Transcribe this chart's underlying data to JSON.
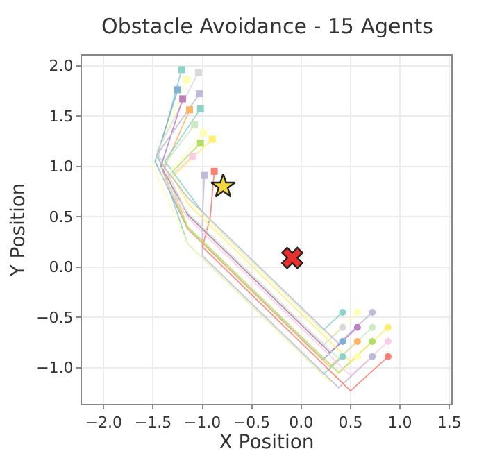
{
  "chart_data": {
    "type": "line",
    "title": "Obstacle Avoidance - 15 Agents",
    "xlabel": "X Position",
    "ylabel": "Y Position",
    "xlim": [
      -2.22,
      1.52
    ],
    "ylim": [
      -1.36,
      2.1
    ],
    "xticks": [
      {
        "value": -2.0,
        "label": "−2.0"
      },
      {
        "value": -1.5,
        "label": "−1.5"
      },
      {
        "value": -1.0,
        "label": "−1.0"
      },
      {
        "value": -0.5,
        "label": "−0.5"
      },
      {
        "value": 0.0,
        "label": "0.0"
      },
      {
        "value": 0.5,
        "label": "0.5"
      },
      {
        "value": 1.0,
        "label": "1.0"
      },
      {
        "value": 1.5,
        "label": "1.5"
      }
    ],
    "yticks": [
      {
        "value": -1.0,
        "label": "−1.0"
      },
      {
        "value": -0.5,
        "label": "−0.5"
      },
      {
        "value": 0.0,
        "label": "0.0"
      },
      {
        "value": 0.5,
        "label": "0.5"
      },
      {
        "value": 1.0,
        "label": "1.0"
      },
      {
        "value": 1.5,
        "label": "1.5"
      },
      {
        "value": 2.0,
        "label": "2.0"
      }
    ],
    "grid": true,
    "marker": "none",
    "line_style": "solid",
    "series": [
      {
        "color": "#8dd3c7",
        "x": [
          0.42,
          0.22,
          -1.15,
          -1.45,
          -1.21
        ],
        "values": [
          -0.89,
          -1.07,
          0.23,
          1.1,
          1.96
        ]
      },
      {
        "color": "#ffffb3",
        "x": [
          0.57,
          0.29,
          -1.15,
          -1.5,
          -1.16
        ],
        "values": [
          -0.89,
          -1.14,
          0.23,
          1.0,
          1.86
        ]
      },
      {
        "color": "#bebada",
        "x": [
          0.72,
          0.38,
          -1.0,
          -1.0,
          -0.98
        ],
        "values": [
          -0.89,
          -1.2,
          0.11,
          0.5,
          0.91
        ]
      },
      {
        "color": "#fb8072",
        "x": [
          0.88,
          0.5,
          -1.0,
          -0.92,
          -0.88
        ],
        "values": [
          -0.89,
          -1.23,
          0.2,
          0.5,
          0.95
        ]
      },
      {
        "color": "#80b1d3",
        "x": [
          0.42,
          0.22,
          -1.15,
          -1.48,
          -1.25
        ],
        "values": [
          -0.74,
          -0.92,
          0.38,
          1.05,
          1.76
        ]
      },
      {
        "color": "#fdb462",
        "x": [
          0.57,
          0.29,
          -1.15,
          -1.4,
          -1.13
        ],
        "values": [
          -0.74,
          -0.99,
          0.38,
          0.95,
          1.56
        ]
      },
      {
        "color": "#b3de69",
        "x": [
          0.72,
          0.38,
          -1.15,
          -1.35,
          -1.02
        ],
        "values": [
          -0.74,
          -1.05,
          0.4,
          0.9,
          1.23
        ]
      },
      {
        "color": "#fccde5",
        "x": [
          0.88,
          0.5,
          -1.15,
          -1.38,
          -1.1
        ],
        "values": [
          -0.74,
          -1.08,
          0.49,
          0.85,
          1.1
        ]
      },
      {
        "color": "#d9d9d9",
        "x": [
          0.42,
          0.22,
          -1.15,
          -1.46,
          -1.04
        ],
        "values": [
          -0.6,
          -0.78,
          0.52,
          1.15,
          1.93
        ]
      },
      {
        "color": "#bc80bd",
        "x": [
          0.57,
          0.29,
          -1.15,
          -1.42,
          -1.2
        ],
        "values": [
          -0.6,
          -0.85,
          0.52,
          1.0,
          1.67
        ]
      },
      {
        "color": "#ccebc5",
        "x": [
          0.72,
          0.38,
          -1.15,
          -1.44,
          -1.08
        ],
        "values": [
          -0.6,
          -0.91,
          0.54,
          0.95,
          1.41
        ]
      },
      {
        "color": "#ffed6f",
        "x": [
          0.88,
          0.5,
          -1.15,
          -1.3,
          -0.9
        ],
        "values": [
          -0.6,
          -0.94,
          0.63,
          0.9,
          1.27
        ]
      },
      {
        "color": "#8dd3c7",
        "x": [
          0.42,
          0.22,
          -0.95,
          -1.38,
          -1.02
        ],
        "values": [
          -0.45,
          -0.63,
          0.48,
          1.05,
          1.57
        ]
      },
      {
        "color": "#ffffb3",
        "x": [
          0.57,
          0.29,
          -1.15,
          -1.32,
          -0.99
        ],
        "values": [
          -0.45,
          -0.7,
          0.67,
          0.95,
          1.33
        ]
      },
      {
        "color": "#bebada",
        "x": [
          0.72,
          0.38,
          -1.15,
          -1.47,
          -1.03
        ],
        "values": [
          -0.45,
          -0.76,
          0.69,
          1.1,
          1.72
        ]
      },
      {
        "type": "scatter",
        "marker": "circle",
        "colors": [
          "#8dd3c7",
          "#ffffb3",
          "#bebada",
          "#fb8072",
          "#80b1d3",
          "#fdb462",
          "#b3de69",
          "#fccde5",
          "#d9d9d9",
          "#bc80bd",
          "#ccebc5",
          "#ffed6f",
          "#8dd3c7",
          "#ffffb3",
          "#bebada"
        ],
        "x": [
          0.42,
          0.57,
          0.72,
          0.88,
          0.42,
          0.57,
          0.72,
          0.88,
          0.42,
          0.57,
          0.72,
          0.88,
          0.42,
          0.57,
          0.72
        ],
        "values": [
          -0.89,
          -0.89,
          -0.89,
          -0.89,
          -0.74,
          -0.74,
          -0.74,
          -0.74,
          -0.6,
          -0.6,
          -0.6,
          -0.6,
          -0.45,
          -0.45,
          -0.45
        ]
      },
      {
        "type": "scatter",
        "marker": "square",
        "colors": [
          "#8dd3c7",
          "#ffffb3",
          "#bebada",
          "#fb8072",
          "#80b1d3",
          "#fdb462",
          "#b3de69",
          "#fccde5",
          "#d9d9d9",
          "#bc80bd",
          "#ccebc5",
          "#ffed6f",
          "#8dd3c7",
          "#ffffb3",
          "#bebada"
        ],
        "x": [
          -1.21,
          -1.16,
          -0.98,
          -0.88,
          -1.25,
          -1.13,
          -1.02,
          -1.1,
          -1.04,
          -1.2,
          -1.08,
          -0.9,
          -1.02,
          -0.99,
          -1.03
        ],
        "values": [
          1.96,
          1.86,
          0.91,
          0.95,
          1.76,
          1.56,
          1.23,
          1.1,
          1.93,
          1.67,
          1.41,
          1.27,
          1.57,
          1.33,
          1.72
        ]
      },
      {
        "type": "scatter",
        "marker": "star",
        "color": "#f5d742",
        "x": [
          -0.79
        ],
        "values": [
          0.8
        ]
      },
      {
        "type": "scatter",
        "marker": "cross",
        "color": "#e8312f",
        "x": [
          -0.09
        ],
        "values": [
          0.09
        ]
      }
    ]
  }
}
